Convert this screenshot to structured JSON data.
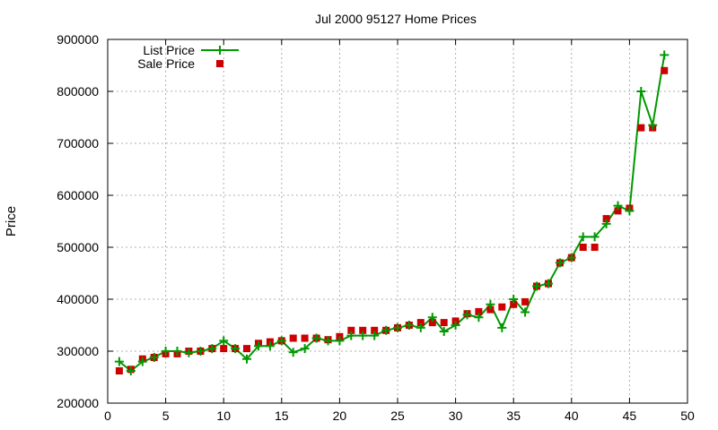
{
  "chart_data": {
    "type": "line",
    "title": "Jul 2000 95127 Home Prices",
    "xlabel": "",
    "ylabel": "Price",
    "xlim": [
      0,
      50
    ],
    "ylim": [
      200000,
      900000
    ],
    "xticks": [
      0,
      5,
      10,
      15,
      20,
      25,
      30,
      35,
      40,
      45,
      50
    ],
    "yticks": [
      200000,
      300000,
      400000,
      500000,
      600000,
      700000,
      800000,
      900000
    ],
    "grid": true,
    "legend_position": "top-left",
    "series": [
      {
        "name": "List Price",
        "style": "line-plus",
        "color": "#009900",
        "x": [
          1,
          2,
          3,
          4,
          5,
          6,
          7,
          8,
          9,
          10,
          11,
          12,
          13,
          14,
          15,
          16,
          17,
          18,
          19,
          20,
          21,
          22,
          23,
          24,
          25,
          26,
          27,
          28,
          29,
          30,
          31,
          32,
          33,
          34,
          35,
          36,
          37,
          38,
          39,
          40,
          41,
          42,
          43,
          44,
          45,
          46,
          47,
          48
        ],
        "values": [
          280000,
          262000,
          280000,
          288000,
          300000,
          300000,
          297000,
          300000,
          305000,
          320000,
          305000,
          285000,
          310000,
          310000,
          320000,
          298000,
          305000,
          325000,
          320000,
          320000,
          330000,
          330000,
          330000,
          340000,
          345000,
          350000,
          345000,
          365000,
          338000,
          350000,
          370000,
          365000,
          390000,
          345000,
          400000,
          375000,
          425000,
          430000,
          470000,
          480000,
          520000,
          520000,
          545000,
          580000,
          570000,
          800000,
          735000,
          870000
        ]
      },
      {
        "name": "Sale Price",
        "style": "square-marker",
        "color": "#cc0000",
        "x": [
          1,
          2,
          3,
          4,
          5,
          6,
          7,
          8,
          9,
          10,
          11,
          12,
          13,
          14,
          15,
          16,
          17,
          18,
          19,
          20,
          21,
          22,
          23,
          24,
          25,
          26,
          27,
          28,
          29,
          30,
          31,
          32,
          33,
          34,
          35,
          36,
          37,
          38,
          39,
          40,
          41,
          42,
          43,
          44,
          45,
          46,
          47,
          48
        ],
        "values": [
          262000,
          265000,
          285000,
          288000,
          295000,
          295000,
          300000,
          300000,
          305000,
          305000,
          305000,
          305000,
          315000,
          318000,
          320000,
          325000,
          325000,
          325000,
          322000,
          328000,
          340000,
          340000,
          340000,
          340000,
          345000,
          350000,
          355000,
          355000,
          355000,
          358000,
          372000,
          376000,
          380000,
          385000,
          390000,
          395000,
          425000,
          430000,
          470000,
          480000,
          500000,
          500000,
          555000,
          570000,
          575000,
          730000,
          730000,
          840000
        ]
      }
    ]
  }
}
